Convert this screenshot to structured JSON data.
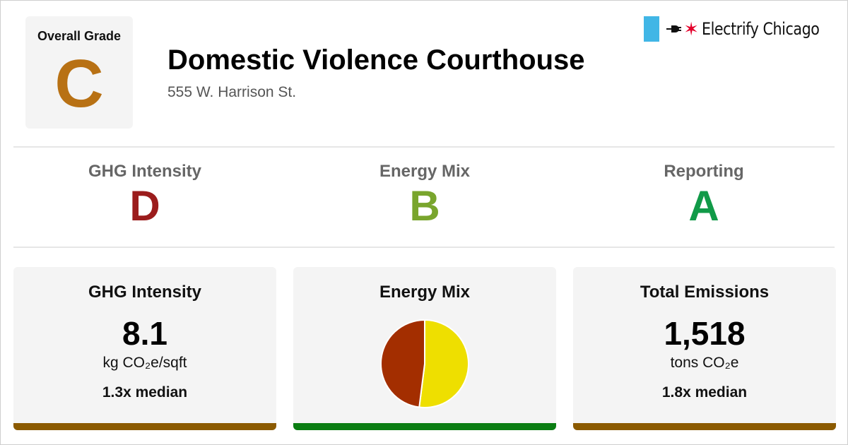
{
  "overall": {
    "label": "Overall Grade",
    "grade": "C",
    "grade_color": "#b87114"
  },
  "building": {
    "name": "Domestic Violence Courthouse",
    "address": "555 W. Harrison St."
  },
  "logo": {
    "text": "Electrify Chicago",
    "blue": "#41b6e6",
    "star_color": "#e4002b"
  },
  "subgrades": [
    {
      "label": "GHG Intensity",
      "grade": "D",
      "color": "#9b1c1c"
    },
    {
      "label": "Energy Mix",
      "grade": "B",
      "color": "#79a52d"
    },
    {
      "label": "Reporting",
      "grade": "A",
      "color": "#119a48"
    }
  ],
  "panels": {
    "ghg": {
      "title": "GHG Intensity",
      "value": "8.1",
      "unit": "kg CO₂e/sqft",
      "median": "1.3x median",
      "bar_color": "#8b5a00"
    },
    "energy": {
      "title": "Energy Mix",
      "bar_color": "#0a7d12"
    },
    "emissions": {
      "title": "Total Emissions",
      "value": "1,518",
      "unit": "tons CO₂e",
      "median": "1.8x median",
      "bar_color": "#8b5a00"
    }
  },
  "chart_data": {
    "type": "pie",
    "series": [
      {
        "values": [
          52,
          48
        ]
      }
    ],
    "colors": [
      "#eedf00",
      "#a32e00"
    ]
  }
}
